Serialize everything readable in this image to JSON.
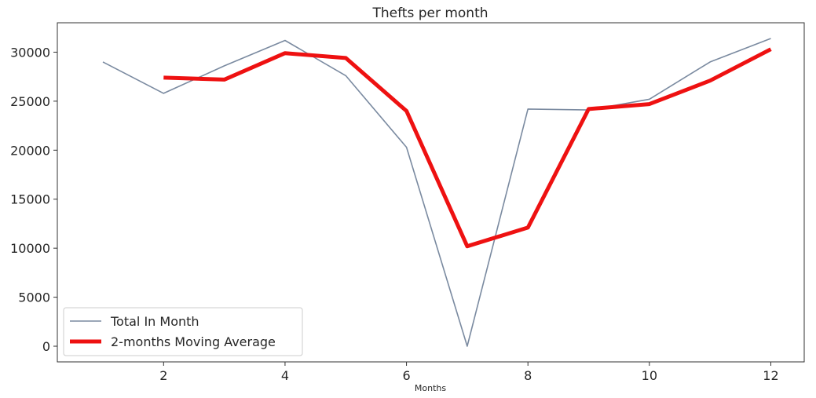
{
  "chart_data": {
    "type": "line",
    "title": "Thefts per month",
    "xlabel": "Months",
    "ylabel": "",
    "xlim": [
      0.25,
      12.55
    ],
    "ylim": [
      -1600,
      33000
    ],
    "xticks": [
      2,
      4,
      6,
      8,
      10,
      12
    ],
    "yticks": [
      0,
      5000,
      10000,
      15000,
      20000,
      25000,
      30000
    ],
    "grid": false,
    "legend_position": "lower-left",
    "series": [
      {
        "name": "Total In Month",
        "color": "#7a8aa0",
        "x": [
          1,
          2,
          3,
          4,
          5,
          6,
          7,
          8,
          9,
          10,
          11,
          12
        ],
        "y": [
          29000,
          25800,
          28600,
          31200,
          27600,
          20300,
          0,
          24200,
          24100,
          25200,
          29000,
          31400
        ]
      },
      {
        "name": "2-months Moving Average",
        "color": "#ee1111",
        "x": [
          2,
          3,
          4,
          5,
          6,
          7,
          8,
          9,
          10,
          11,
          12
        ],
        "y": [
          27400,
          27200,
          29900,
          29400,
          24000,
          10200,
          12100,
          24200,
          24700,
          27100,
          30300
        ]
      }
    ]
  }
}
